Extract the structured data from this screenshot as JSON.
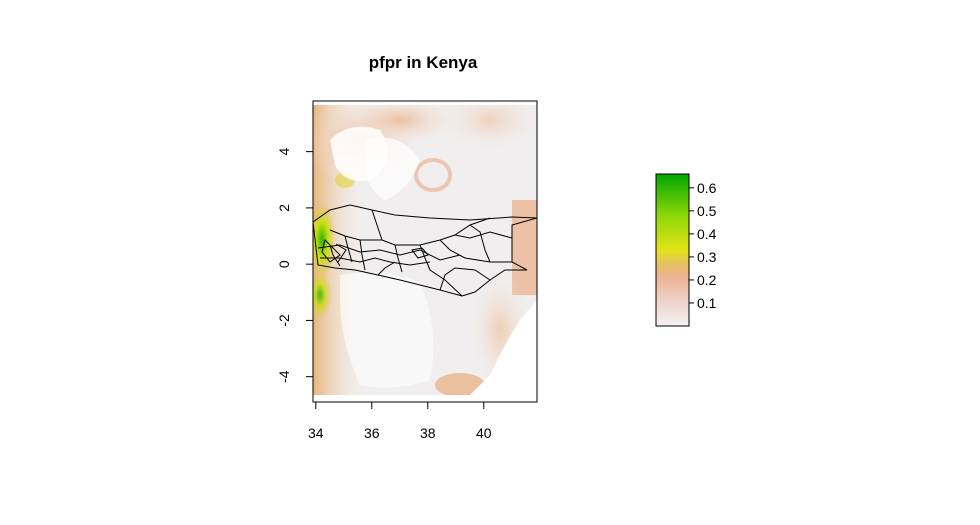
{
  "chart_data": {
    "type": "heatmap",
    "title": "pfpr in Kenya",
    "x_ticks": [
      34,
      36,
      38,
      40
    ],
    "y_ticks": [
      -4,
      -2,
      0,
      2,
      4
    ],
    "xlim": [
      33.9,
      41.9
    ],
    "ylim": [
      -4.9,
      5.8
    ],
    "legend": {
      "placement": "right",
      "range": [
        0.0,
        0.66
      ],
      "ticks": [
        0.1,
        0.2,
        0.3,
        0.4,
        0.5,
        0.6
      ],
      "tick_labels": [
        "0.1",
        "0.2",
        "0.3",
        "0.4",
        "0.5",
        "0.6"
      ],
      "colors": [
        "#f2f2f2",
        "#efcfc6",
        "#ecb293",
        "#e6c35d",
        "#e3e316",
        "#8fd808",
        "#00a600"
      ]
    },
    "grid": false
  }
}
